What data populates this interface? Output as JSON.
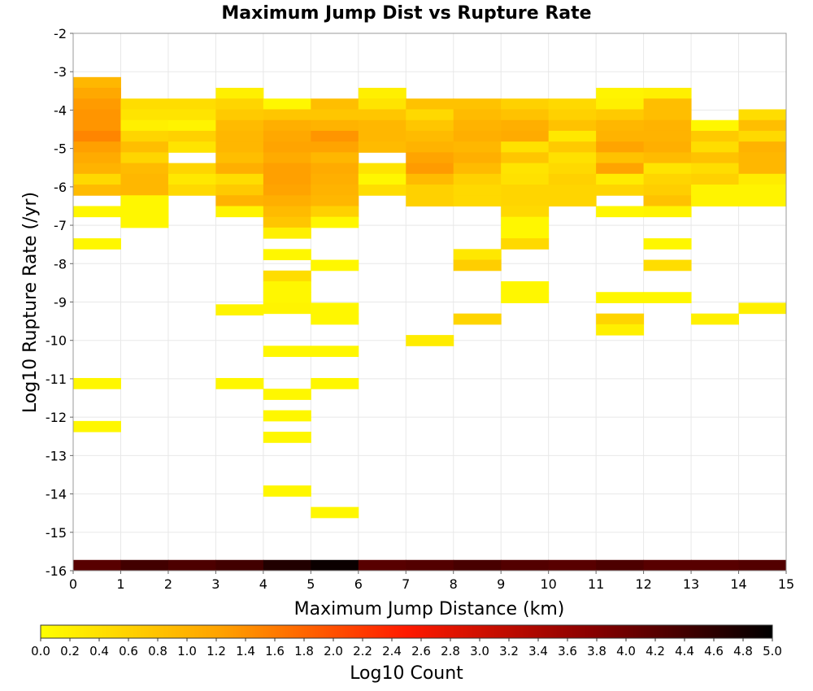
{
  "chart_data": {
    "type": "heatmap",
    "title": "Maximum Jump Dist vs Rupture Rate",
    "xlabel": "Maximum Jump Distance (km)",
    "ylabel": "Log10 Rupture Rate (/yr)",
    "xlim": [
      0,
      15
    ],
    "ylim": [
      -16,
      -2
    ],
    "x_ticks": [
      0,
      1,
      2,
      3,
      4,
      5,
      6,
      7,
      8,
      9,
      10,
      11,
      12,
      13,
      14,
      15
    ],
    "y_ticks": [
      -2,
      -3,
      -4,
      -5,
      -6,
      -7,
      -8,
      -9,
      -10,
      -11,
      -12,
      -13,
      -14,
      -15,
      -16
    ],
    "x_bin_width": 1,
    "y_bin_height": 0.28,
    "grid": true,
    "colorbar": {
      "label": "Log10 Count",
      "range": [
        0,
        5
      ],
      "ticks": [
        "0.0",
        "0.2",
        "0.4",
        "0.6",
        "0.8",
        "1.0",
        "1.2",
        "1.4",
        "1.6",
        "1.8",
        "2.0",
        "2.2",
        "2.4",
        "2.6",
        "2.8",
        "3.0",
        "3.2",
        "3.4",
        "3.6",
        "3.8",
        "4.0",
        "4.2",
        "4.4",
        "4.6",
        "4.8",
        "5.0"
      ],
      "colors": [
        "#ffff00",
        "#ffa000",
        "#ff1a00",
        "#8a0000",
        "#000000"
      ]
    },
    "cells": [
      {
        "x": 0,
        "y": -3.42,
        "v": 0.95
      },
      {
        "x": 0,
        "y": -3.7,
        "v": 1.15
      },
      {
        "x": 0,
        "y": -3.98,
        "v": 1.3
      },
      {
        "x": 0,
        "y": -4.26,
        "v": 1.35
      },
      {
        "x": 0,
        "y": -4.54,
        "v": 1.35
      },
      {
        "x": 0,
        "y": -4.82,
        "v": 1.5
      },
      {
        "x": 0,
        "y": -5.1,
        "v": 1.25
      },
      {
        "x": 0,
        "y": -5.38,
        "v": 1.1
      },
      {
        "x": 0,
        "y": -5.66,
        "v": 1.0
      },
      {
        "x": 0,
        "y": -5.94,
        "v": 0.5
      },
      {
        "x": 0,
        "y": -6.22,
        "v": 0.9
      },
      {
        "x": 0,
        "y": -6.78,
        "v": 0.1
      },
      {
        "x": 0,
        "y": -7.62,
        "v": 0.1
      },
      {
        "x": 0,
        "y": -11.26,
        "v": 0.1
      },
      {
        "x": 0,
        "y": -12.38,
        "v": 0.1
      },
      {
        "x": 1,
        "y": -3.98,
        "v": 0.45
      },
      {
        "x": 1,
        "y": -4.26,
        "v": 0.35
      },
      {
        "x": 1,
        "y": -4.54,
        "v": 0.2
      },
      {
        "x": 1,
        "y": -4.82,
        "v": 0.55
      },
      {
        "x": 1,
        "y": -5.1,
        "v": 0.85
      },
      {
        "x": 1,
        "y": -5.38,
        "v": 0.55
      },
      {
        "x": 1,
        "y": -5.66,
        "v": 0.9
      },
      {
        "x": 1,
        "y": -5.94,
        "v": 0.95
      },
      {
        "x": 1,
        "y": -6.22,
        "v": 0.95
      },
      {
        "x": 1,
        "y": -6.5,
        "v": 0.1
      },
      {
        "x": 1,
        "y": -6.78,
        "v": 0.1
      },
      {
        "x": 1,
        "y": -7.06,
        "v": 0.1
      },
      {
        "x": 2,
        "y": -3.98,
        "v": 0.45
      },
      {
        "x": 2,
        "y": -4.26,
        "v": 0.35
      },
      {
        "x": 2,
        "y": -4.54,
        "v": 0.15
      },
      {
        "x": 2,
        "y": -4.82,
        "v": 0.6
      },
      {
        "x": 2,
        "y": -5.1,
        "v": 0.35
      },
      {
        "x": 2,
        "y": -5.66,
        "v": 0.55
      },
      {
        "x": 2,
        "y": -5.94,
        "v": 0.3
      },
      {
        "x": 2,
        "y": -6.22,
        "v": 0.5
      },
      {
        "x": 3,
        "y": -3.7,
        "v": 0.2
      },
      {
        "x": 3,
        "y": -3.98,
        "v": 0.55
      },
      {
        "x": 3,
        "y": -4.26,
        "v": 0.7
      },
      {
        "x": 3,
        "y": -4.54,
        "v": 0.9
      },
      {
        "x": 3,
        "y": -4.82,
        "v": 0.95
      },
      {
        "x": 3,
        "y": -5.1,
        "v": 0.95
      },
      {
        "x": 3,
        "y": -5.38,
        "v": 0.85
      },
      {
        "x": 3,
        "y": -5.66,
        "v": 1.05
      },
      {
        "x": 3,
        "y": -5.94,
        "v": 0.45
      },
      {
        "x": 3,
        "y": -6.22,
        "v": 0.7
      },
      {
        "x": 3,
        "y": -6.5,
        "v": 1.0
      },
      {
        "x": 3,
        "y": -6.78,
        "v": 0.15
      },
      {
        "x": 3,
        "y": -9.34,
        "v": 0.15
      },
      {
        "x": 3,
        "y": -11.26,
        "v": 0.1
      },
      {
        "x": 4,
        "y": -3.98,
        "v": 0.1
      },
      {
        "x": 4,
        "y": -4.26,
        "v": 0.75
      },
      {
        "x": 4,
        "y": -4.54,
        "v": 1.05
      },
      {
        "x": 4,
        "y": -4.82,
        "v": 1.15
      },
      {
        "x": 4,
        "y": -5.1,
        "v": 1.2
      },
      {
        "x": 4,
        "y": -5.38,
        "v": 1.1
      },
      {
        "x": 4,
        "y": -5.66,
        "v": 1.25
      },
      {
        "x": 4,
        "y": -5.94,
        "v": 1.25
      },
      {
        "x": 4,
        "y": -6.22,
        "v": 1.2
      },
      {
        "x": 4,
        "y": -6.5,
        "v": 1.05
      },
      {
        "x": 4,
        "y": -6.78,
        "v": 0.9
      },
      {
        "x": 4,
        "y": -7.06,
        "v": 0.75
      },
      {
        "x": 4,
        "y": -7.34,
        "v": 0.2
      },
      {
        "x": 4,
        "y": -7.9,
        "v": 0.1
      },
      {
        "x": 4,
        "y": -8.46,
        "v": 0.45
      },
      {
        "x": 4,
        "y": -8.74,
        "v": 0.1
      },
      {
        "x": 4,
        "y": -9.02,
        "v": 0.1
      },
      {
        "x": 4,
        "y": -9.3,
        "v": 0.15
      },
      {
        "x": 4,
        "y": -10.42,
        "v": 0.1
      },
      {
        "x": 4,
        "y": -11.54,
        "v": 0.1
      },
      {
        "x": 4,
        "y": -12.1,
        "v": 0.1
      },
      {
        "x": 4,
        "y": -12.66,
        "v": 0.1
      },
      {
        "x": 4,
        "y": -14.06,
        "v": 0.1
      },
      {
        "x": 5,
        "y": -3.98,
        "v": 0.85
      },
      {
        "x": 5,
        "y": -4.26,
        "v": 0.75
      },
      {
        "x": 5,
        "y": -4.54,
        "v": 1.0
      },
      {
        "x": 5,
        "y": -4.82,
        "v": 1.35
      },
      {
        "x": 5,
        "y": -5.1,
        "v": 1.2
      },
      {
        "x": 5,
        "y": -5.38,
        "v": 0.95
      },
      {
        "x": 5,
        "y": -5.66,
        "v": 1.1
      },
      {
        "x": 5,
        "y": -5.94,
        "v": 1.05
      },
      {
        "x": 5,
        "y": -6.22,
        "v": 1.0
      },
      {
        "x": 5,
        "y": -6.5,
        "v": 0.95
      },
      {
        "x": 5,
        "y": -6.78,
        "v": 0.6
      },
      {
        "x": 5,
        "y": -7.06,
        "v": 0.1
      },
      {
        "x": 5,
        "y": -8.18,
        "v": 0.1
      },
      {
        "x": 5,
        "y": -9.3,
        "v": 0.1
      },
      {
        "x": 5,
        "y": -9.58,
        "v": 0.1
      },
      {
        "x": 5,
        "y": -10.42,
        "v": 0.1
      },
      {
        "x": 5,
        "y": -11.26,
        "v": 0.1
      },
      {
        "x": 5,
        "y": -14.62,
        "v": 0.1
      },
      {
        "x": 6,
        "y": -3.7,
        "v": 0.2
      },
      {
        "x": 6,
        "y": -3.98,
        "v": 0.35
      },
      {
        "x": 6,
        "y": -4.26,
        "v": 0.75
      },
      {
        "x": 6,
        "y": -4.54,
        "v": 0.95
      },
      {
        "x": 6,
        "y": -4.82,
        "v": 0.95
      },
      {
        "x": 6,
        "y": -5.1,
        "v": 0.9
      },
      {
        "x": 6,
        "y": -5.66,
        "v": 0.35
      },
      {
        "x": 6,
        "y": -5.94,
        "v": 0.1
      },
      {
        "x": 6,
        "y": -6.22,
        "v": 0.45
      },
      {
        "x": 7,
        "y": -3.98,
        "v": 0.8
      },
      {
        "x": 7,
        "y": -4.26,
        "v": 0.5
      },
      {
        "x": 7,
        "y": -4.54,
        "v": 0.75
      },
      {
        "x": 7,
        "y": -4.82,
        "v": 0.9
      },
      {
        "x": 7,
        "y": -5.1,
        "v": 1.0
      },
      {
        "x": 7,
        "y": -5.38,
        "v": 1.2
      },
      {
        "x": 7,
        "y": -5.66,
        "v": 1.3
      },
      {
        "x": 7,
        "y": -5.94,
        "v": 0.9
      },
      {
        "x": 7,
        "y": -6.22,
        "v": 0.6
      },
      {
        "x": 7,
        "y": -6.5,
        "v": 0.6
      },
      {
        "x": 7,
        "y": -10.14,
        "v": 0.25
      },
      {
        "x": 8,
        "y": -3.98,
        "v": 0.8
      },
      {
        "x": 8,
        "y": -4.26,
        "v": 0.9
      },
      {
        "x": 8,
        "y": -4.54,
        "v": 1.0
      },
      {
        "x": 8,
        "y": -4.82,
        "v": 1.05
      },
      {
        "x": 8,
        "y": -5.1,
        "v": 0.95
      },
      {
        "x": 8,
        "y": -5.38,
        "v": 1.05
      },
      {
        "x": 8,
        "y": -5.66,
        "v": 0.9
      },
      {
        "x": 8,
        "y": -5.94,
        "v": 0.6
      },
      {
        "x": 8,
        "y": -6.22,
        "v": 0.5
      },
      {
        "x": 8,
        "y": -6.5,
        "v": 0.5
      },
      {
        "x": 8,
        "y": -7.9,
        "v": 0.3
      },
      {
        "x": 8,
        "y": -8.18,
        "v": 0.65
      },
      {
        "x": 8,
        "y": -9.58,
        "v": 0.55
      },
      {
        "x": 9,
        "y": -3.98,
        "v": 0.6
      },
      {
        "x": 9,
        "y": -4.26,
        "v": 0.8
      },
      {
        "x": 9,
        "y": -4.54,
        "v": 1.05
      },
      {
        "x": 9,
        "y": -4.82,
        "v": 1.1
      },
      {
        "x": 9,
        "y": -5.1,
        "v": 0.4
      },
      {
        "x": 9,
        "y": -5.38,
        "v": 0.75
      },
      {
        "x": 9,
        "y": -5.66,
        "v": 0.35
      },
      {
        "x": 9,
        "y": -5.94,
        "v": 0.4
      },
      {
        "x": 9,
        "y": -6.22,
        "v": 0.55
      },
      {
        "x": 9,
        "y": -6.5,
        "v": 0.55
      },
      {
        "x": 9,
        "y": -6.78,
        "v": 0.5
      },
      {
        "x": 9,
        "y": -7.06,
        "v": 0.1
      },
      {
        "x": 9,
        "y": -7.34,
        "v": 0.1
      },
      {
        "x": 9,
        "y": -7.62,
        "v": 0.5
      },
      {
        "x": 9,
        "y": -8.74,
        "v": 0.1
      },
      {
        "x": 9,
        "y": -9.02,
        "v": 0.1
      },
      {
        "x": 10,
        "y": -3.98,
        "v": 0.5
      },
      {
        "x": 10,
        "y": -4.26,
        "v": 0.6
      },
      {
        "x": 10,
        "y": -4.54,
        "v": 0.8
      },
      {
        "x": 10,
        "y": -4.82,
        "v": 0.3
      },
      {
        "x": 10,
        "y": -5.1,
        "v": 0.7
      },
      {
        "x": 10,
        "y": -5.38,
        "v": 0.4
      },
      {
        "x": 10,
        "y": -5.66,
        "v": 0.5
      },
      {
        "x": 10,
        "y": -5.94,
        "v": 0.6
      },
      {
        "x": 10,
        "y": -6.22,
        "v": 0.55
      },
      {
        "x": 10,
        "y": -6.5,
        "v": 0.55
      },
      {
        "x": 11,
        "y": -3.7,
        "v": 0.15
      },
      {
        "x": 11,
        "y": -3.98,
        "v": 0.2
      },
      {
        "x": 11,
        "y": -4.26,
        "v": 0.7
      },
      {
        "x": 11,
        "y": -4.54,
        "v": 0.95
      },
      {
        "x": 11,
        "y": -4.82,
        "v": 1.0
      },
      {
        "x": 11,
        "y": -5.1,
        "v": 1.2
      },
      {
        "x": 11,
        "y": -5.38,
        "v": 0.8
      },
      {
        "x": 11,
        "y": -5.66,
        "v": 1.2
      },
      {
        "x": 11,
        "y": -5.94,
        "v": 0.25
      },
      {
        "x": 11,
        "y": -6.22,
        "v": 0.55
      },
      {
        "x": 11,
        "y": -6.78,
        "v": 0.1
      },
      {
        "x": 11,
        "y": -9.02,
        "v": 0.1
      },
      {
        "x": 11,
        "y": -9.58,
        "v": 0.55
      },
      {
        "x": 11,
        "y": -9.86,
        "v": 0.2
      },
      {
        "x": 12,
        "y": -3.7,
        "v": 0.2
      },
      {
        "x": 12,
        "y": -3.98,
        "v": 0.85
      },
      {
        "x": 12,
        "y": -4.26,
        "v": 0.85
      },
      {
        "x": 12,
        "y": -4.54,
        "v": 1.0
      },
      {
        "x": 12,
        "y": -4.82,
        "v": 1.0
      },
      {
        "x": 12,
        "y": -5.1,
        "v": 1.05
      },
      {
        "x": 12,
        "y": -5.38,
        "v": 0.9
      },
      {
        "x": 12,
        "y": -5.66,
        "v": 0.35
      },
      {
        "x": 12,
        "y": -5.94,
        "v": 0.55
      },
      {
        "x": 12,
        "y": -6.22,
        "v": 0.65
      },
      {
        "x": 12,
        "y": -6.5,
        "v": 0.8
      },
      {
        "x": 12,
        "y": -6.78,
        "v": 0.15
      },
      {
        "x": 12,
        "y": -7.62,
        "v": 0.1
      },
      {
        "x": 12,
        "y": -8.18,
        "v": 0.45
      },
      {
        "x": 12,
        "y": -9.02,
        "v": 0.1
      },
      {
        "x": 13,
        "y": -4.54,
        "v": 0.1
      },
      {
        "x": 13,
        "y": -4.82,
        "v": 0.7
      },
      {
        "x": 13,
        "y": -5.1,
        "v": 0.45
      },
      {
        "x": 13,
        "y": -5.38,
        "v": 0.8
      },
      {
        "x": 13,
        "y": -5.66,
        "v": 0.45
      },
      {
        "x": 13,
        "y": -5.94,
        "v": 0.6
      },
      {
        "x": 13,
        "y": -6.22,
        "v": 0.15
      },
      {
        "x": 13,
        "y": -6.5,
        "v": 0.15
      },
      {
        "x": 13,
        "y": -9.58,
        "v": 0.2
      },
      {
        "x": 14,
        "y": -4.26,
        "v": 0.45
      },
      {
        "x": 14,
        "y": -4.54,
        "v": 0.85
      },
      {
        "x": 14,
        "y": -4.82,
        "v": 0.5
      },
      {
        "x": 14,
        "y": -5.1,
        "v": 1.0
      },
      {
        "x": 14,
        "y": -5.38,
        "v": 0.95
      },
      {
        "x": 14,
        "y": -5.66,
        "v": 0.95
      },
      {
        "x": 14,
        "y": -5.94,
        "v": 0.25
      },
      {
        "x": 14,
        "y": -6.22,
        "v": 0.15
      },
      {
        "x": 14,
        "y": -6.5,
        "v": 0.15
      },
      {
        "x": 14,
        "y": -9.3,
        "v": 0.2
      },
      {
        "x": 0,
        "y": -16,
        "v": 4.2
      },
      {
        "x": 1,
        "y": -16,
        "v": 4.4
      },
      {
        "x": 2,
        "y": -16,
        "v": 4.3
      },
      {
        "x": 3,
        "y": -16,
        "v": 4.4
      },
      {
        "x": 4,
        "y": -16,
        "v": 4.7
      },
      {
        "x": 5,
        "y": -16,
        "v": 4.9
      },
      {
        "x": 6,
        "y": -16,
        "v": 4.2
      },
      {
        "x": 7,
        "y": -16,
        "v": 4.25
      },
      {
        "x": 8,
        "y": -16,
        "v": 4.35
      },
      {
        "x": 9,
        "y": -16,
        "v": 4.25
      },
      {
        "x": 10,
        "y": -16,
        "v": 4.2
      },
      {
        "x": 11,
        "y": -16,
        "v": 4.3
      },
      {
        "x": 12,
        "y": -16,
        "v": 4.2
      },
      {
        "x": 13,
        "y": -16,
        "v": 4.2
      },
      {
        "x": 14,
        "y": -16,
        "v": 4.25
      }
    ]
  }
}
